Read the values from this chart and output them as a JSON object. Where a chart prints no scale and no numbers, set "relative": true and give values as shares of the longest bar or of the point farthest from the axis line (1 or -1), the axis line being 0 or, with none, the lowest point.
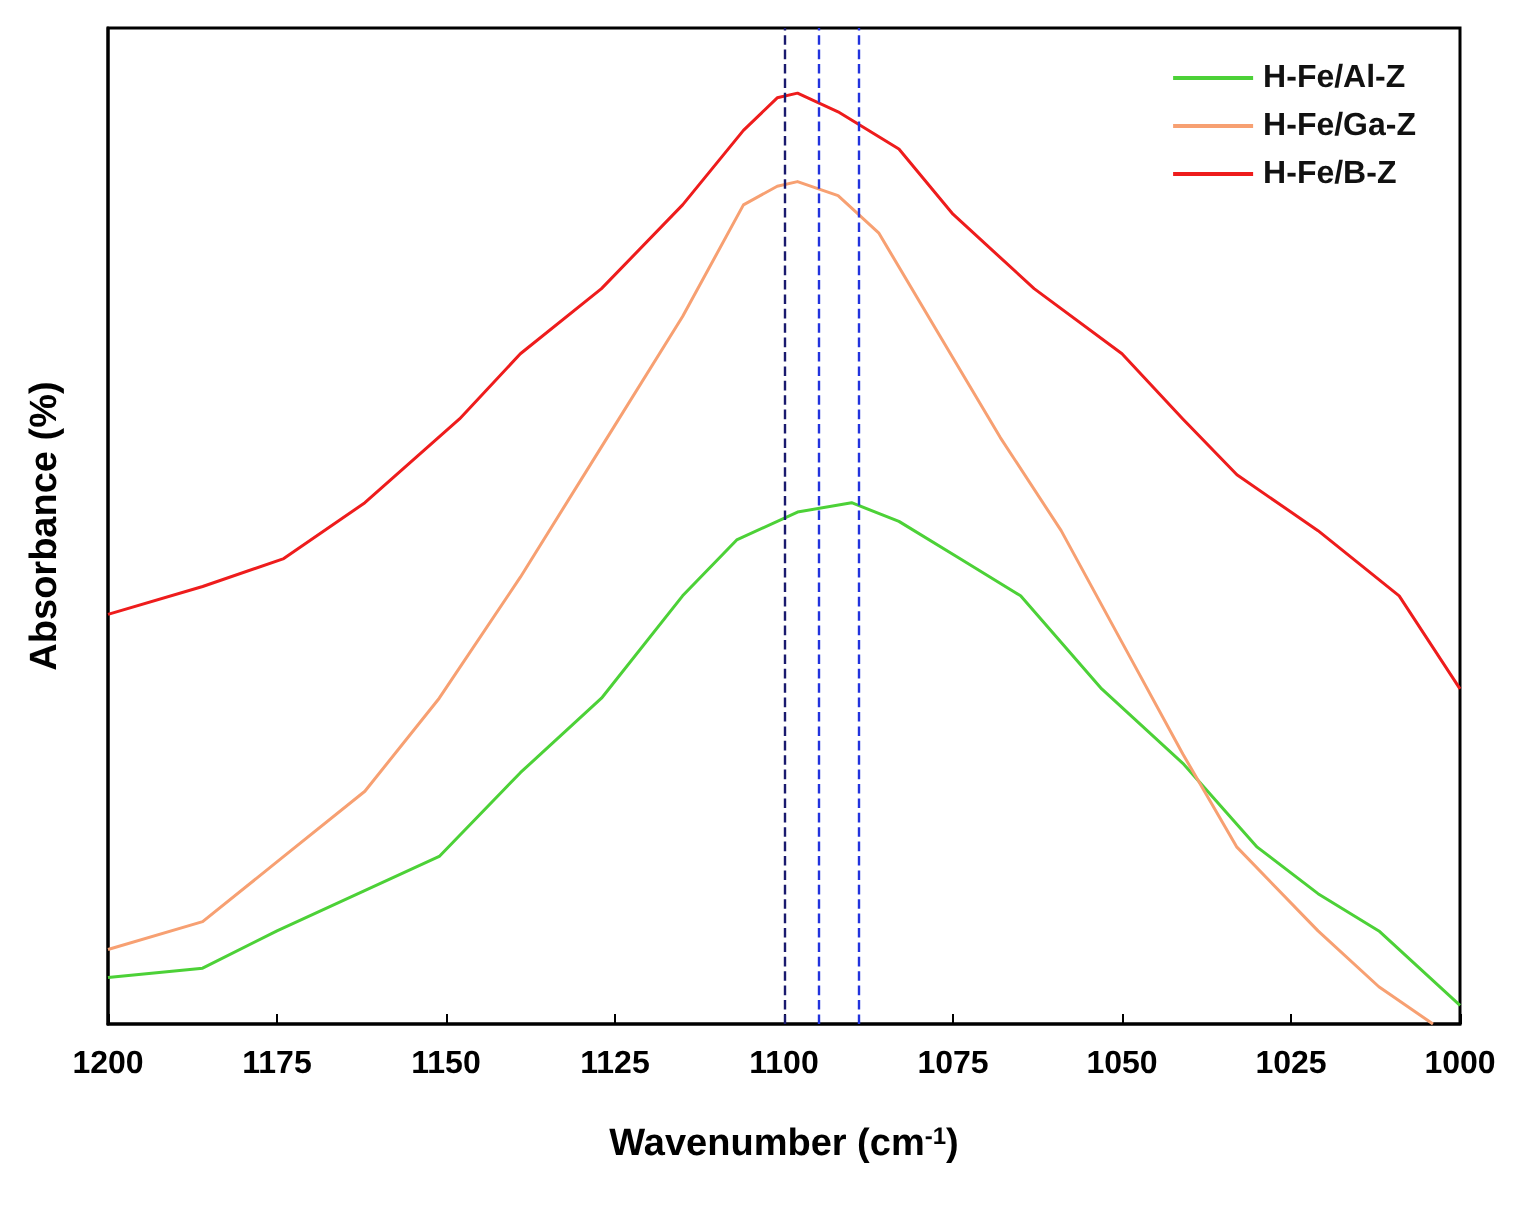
{
  "chart_data": {
    "type": "line",
    "relative": true,
    "xlabel": "Wavenumber (cm$^{-1}$)",
    "ylabel": "Absorbance (%)",
    "xlim": [
      1200,
      1000
    ],
    "xticks": [
      1200,
      1175,
      1150,
      1125,
      1100,
      1075,
      1050,
      1025,
      1000
    ],
    "legend": "top right",
    "grid": false,
    "marker": "none",
    "line_style": "solid",
    "series": [
      {
        "name": "H-Fe/Al-Z",
        "color": "#4cd137",
        "x": [
          1200,
          1186,
          1175,
          1163,
          1151,
          1139,
          1127,
          1115,
          1107,
          1098,
          1090,
          1083,
          1074,
          1065,
          1053,
          1041,
          1030,
          1021,
          1012,
          1006,
          1000
        ],
        "values": [
          0.05,
          0.06,
          0.1,
          0.14,
          0.18,
          0.27,
          0.35,
          0.46,
          0.52,
          0.55,
          0.56,
          0.54,
          0.5,
          0.46,
          0.36,
          0.28,
          0.19,
          0.14,
          0.1,
          0.06,
          0.02
        ]
      },
      {
        "name": "H-Fe/Ga-Z",
        "color": "#f7a072",
        "x": [
          1200,
          1186,
          1174,
          1162,
          1151,
          1139,
          1127,
          1115,
          1106,
          1101,
          1098,
          1092,
          1086,
          1077,
          1068,
          1059,
          1050,
          1041,
          1033,
          1021,
          1012,
          1004
        ],
        "values": [
          0.08,
          0.11,
          0.18,
          0.25,
          0.35,
          0.48,
          0.62,
          0.76,
          0.88,
          0.9,
          0.905,
          0.89,
          0.85,
          0.74,
          0.63,
          0.53,
          0.41,
          0.29,
          0.19,
          0.1,
          0.04,
          0
        ]
      },
      {
        "name": "H-Fe/B-Z",
        "color": "#ee1c1c",
        "x": [
          1200,
          1186,
          1174,
          1162,
          1148,
          1139,
          1127,
          1115,
          1106,
          1101,
          1098,
          1092,
          1083,
          1075,
          1063,
          1050,
          1041,
          1033,
          1021,
          1009,
          1000
        ],
        "values": [
          0.44,
          0.47,
          0.5,
          0.56,
          0.65,
          0.72,
          0.79,
          0.88,
          0.96,
          0.995,
          1.0,
          0.98,
          0.94,
          0.87,
          0.79,
          0.72,
          0.65,
          0.59,
          0.53,
          0.46,
          0.36
        ]
      }
    ],
    "ref_lines": [
      {
        "axis": "x",
        "value": 1100,
        "color": "#1a1a6e",
        "line_style": "dashed"
      },
      {
        "axis": "x",
        "value": 1095,
        "color": "#2233dd",
        "line_style": "dashed"
      },
      {
        "axis": "x",
        "value": 1089,
        "color": "#2233dd",
        "line_style": "dashed"
      }
    ]
  }
}
